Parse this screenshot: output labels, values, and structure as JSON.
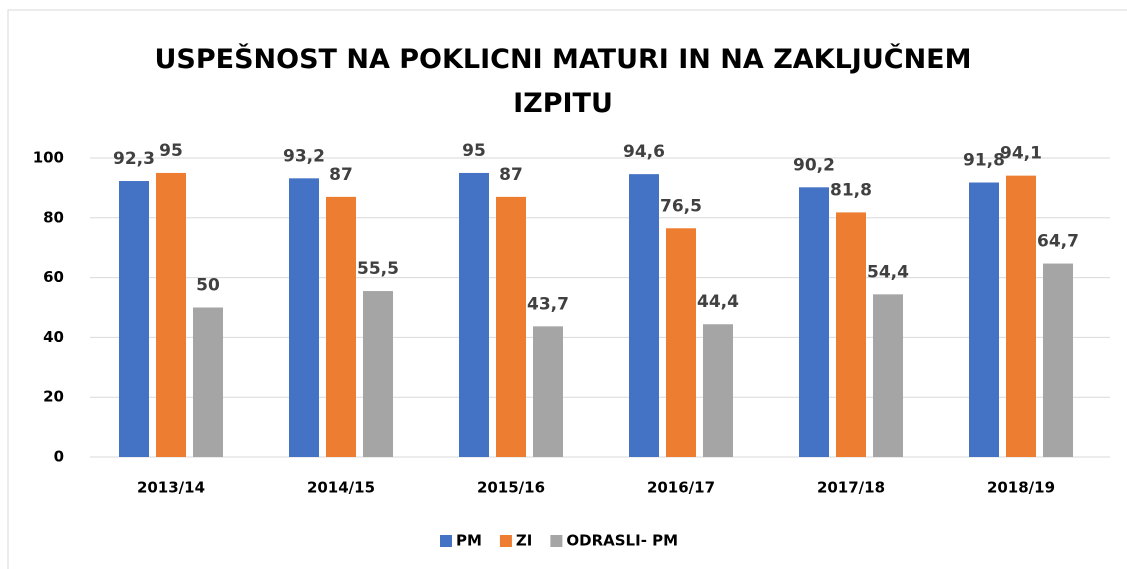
{
  "chart_data": {
    "type": "bar",
    "title": "USPEŠNOST NA POKLICNI MATURI IN NA ZAKLJUČNEM IZPITU",
    "categories": [
      "2013/14",
      "2014/15",
      "2015/16",
      "2016/17",
      "2017/18",
      "2018/19"
    ],
    "series": [
      {
        "name": "PM",
        "color": "#4472c4",
        "values": [
          92.3,
          93.2,
          95,
          94.6,
          90.2,
          91.8
        ],
        "value_labels": [
          "92,3",
          "93,2",
          "95",
          "94,6",
          "90,2",
          "91,8"
        ]
      },
      {
        "name": "ZI",
        "color": "#ed7d31",
        "values": [
          95,
          87,
          87,
          76.5,
          81.8,
          94.1
        ],
        "value_labels": [
          "95",
          "87",
          "87",
          "76,5",
          "81,8",
          "94,1"
        ]
      },
      {
        "name": "ODRASLI- PM",
        "color": "#a5a5a5",
        "values": [
          50,
          55.5,
          43.7,
          44.4,
          54.4,
          64.7
        ],
        "value_labels": [
          "50",
          "55,5",
          "43,7",
          "44,4",
          "54,4",
          "64,7"
        ]
      }
    ],
    "ylim": [
      0,
      100
    ],
    "yticks": [
      0,
      20,
      40,
      60,
      80,
      100
    ],
    "grid": true,
    "legend": "bottom"
  }
}
